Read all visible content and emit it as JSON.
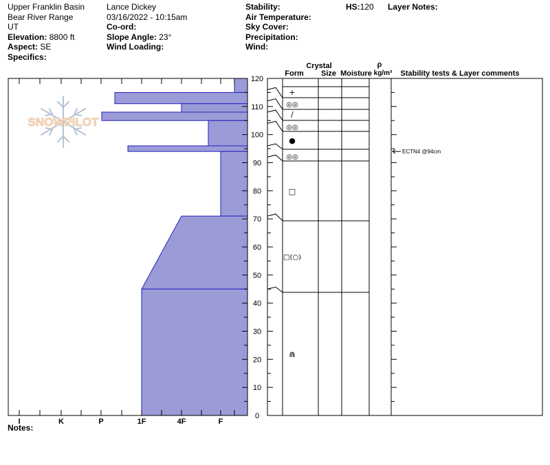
{
  "header": {
    "location": "Upper Franklin Basin",
    "range": "Bear River Range",
    "state": "UT",
    "elevation_label": "Elevation:",
    "elevation_value": "8800 ft",
    "aspect_label": "Aspect:",
    "aspect_value": "SE",
    "specifics_label": "Specifics:",
    "observer": "Lance Dickey",
    "datetime": "03/16/2022 - 10:15am",
    "coord_label": "Co-ord:",
    "slope_label": "Slope Angle:",
    "slope_value": "23°",
    "wind_loading_label": "Wind Loading:",
    "stability_label": "Stability:",
    "air_temp_label": "Air Temperature:",
    "sky_cover_label": "Sky Cover:",
    "precip_label": "Precipitation:",
    "wind_label": "Wind:",
    "hs_label": "HS:",
    "hs_value": "120",
    "layer_notes_label": "Layer Notes:"
  },
  "columns": {
    "crystal": "Crystal",
    "form": "Form",
    "size": "Size",
    "moisture": "Moisture",
    "rho": "ρ",
    "density_unit": "kg/m³",
    "stability": "Stability tests & Layer comments"
  },
  "notes_label": "Notes:",
  "watermark": "SNOWPILOT",
  "colors": {
    "hardness_fill": "#9b9bd8",
    "hardness_stroke": "#2222bb"
  },
  "chart_data": {
    "type": "snow_profile",
    "hardness_axis": [
      "I",
      "K",
      "P",
      "1F",
      "4F",
      "F"
    ],
    "depth_axis": {
      "min": 0,
      "max": 120,
      "ticks": [
        0,
        10,
        20,
        30,
        40,
        50,
        60,
        70,
        80,
        90,
        100,
        110,
        120
      ],
      "unit": "cm"
    },
    "hardness_profile": [
      {
        "top": 120,
        "bottom": 115,
        "hardness": "F"
      },
      {
        "top": 115,
        "bottom": 111,
        "hardness": "P+"
      },
      {
        "top": 111,
        "bottom": 108,
        "hardness": "4F"
      },
      {
        "top": 108,
        "bottom": 105,
        "hardness": "P"
      },
      {
        "top": 105,
        "bottom": 96,
        "hardness": "4F+"
      },
      {
        "top": 96,
        "bottom": 94,
        "hardness": "P-1F"
      },
      {
        "top": 94,
        "bottom": 71,
        "hardness": "F"
      },
      {
        "top": 71,
        "bottom": 45,
        "hardness": "4F to 1F (gradient)"
      },
      {
        "top": 45,
        "bottom": 0,
        "hardness": "1F"
      }
    ],
    "layers": [
      {
        "top": 120,
        "bottom": 116,
        "form": "+"
      },
      {
        "top": 116,
        "bottom": 112,
        "form": "◎◎"
      },
      {
        "top": 112,
        "bottom": 108,
        "form": "∕"
      },
      {
        "top": 108,
        "bottom": 104,
        "form": "◎◎"
      },
      {
        "top": 104,
        "bottom": 96,
        "form": "●"
      },
      {
        "top": 96,
        "bottom": 92,
        "form": "◎◎"
      },
      {
        "top": 92,
        "bottom": 71,
        "form": "□"
      },
      {
        "top": 71,
        "bottom": 45,
        "form": "□(○)"
      },
      {
        "top": 45,
        "bottom": 0,
        "form": "⋒"
      }
    ],
    "stability_tests": [
      {
        "depth": 94,
        "text": "ECTN4 @94cm"
      }
    ]
  }
}
